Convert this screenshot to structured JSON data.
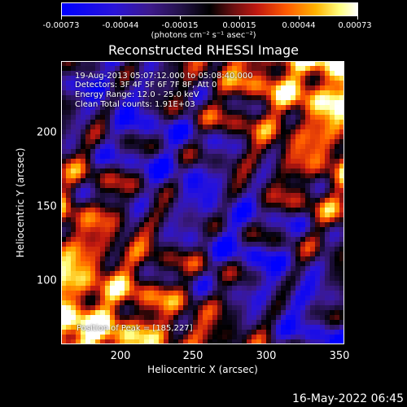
{
  "colorbar": {
    "labels": [
      "-0.00073",
      "-0.00044",
      "-0.00015",
      "0.00015",
      "0.00044",
      "0.00073"
    ],
    "units": "(photons cm⁻² s⁻¹ asec⁻²)"
  },
  "chart_data": {
    "type": "heatmap",
    "title": "Reconstructed RHESSI Image",
    "xlabel": "Heliocentric X (arcsec)",
    "ylabel": "Heliocentric Y (arcsec)",
    "xlim": [
      160,
      352
    ],
    "ylim": [
      53,
      245
    ],
    "xticks": [
      "200",
      "250",
      "300",
      "350"
    ],
    "yticks": [
      "100",
      "150",
      "200"
    ],
    "clim": [
      -0.00073,
      0.00073
    ],
    "colormap": "blue-purple-black-red-yellow-white",
    "peak": [
      185,
      227
    ]
  },
  "annotations": {
    "line1": "19-Aug-2013 05:07:12.000 to 05:08:40.000",
    "line2": "Detectors: 3F 4F 5F 6F 7F 8F, Att 0",
    "line3": "Energy Range: 12.0 - 25.0 keV",
    "line4": "Clean     Total counts: 1.91E+03",
    "peak": "Position of Peak = [185,227]"
  },
  "footer": {
    "timestamp": "16-May-2022 06:45"
  }
}
